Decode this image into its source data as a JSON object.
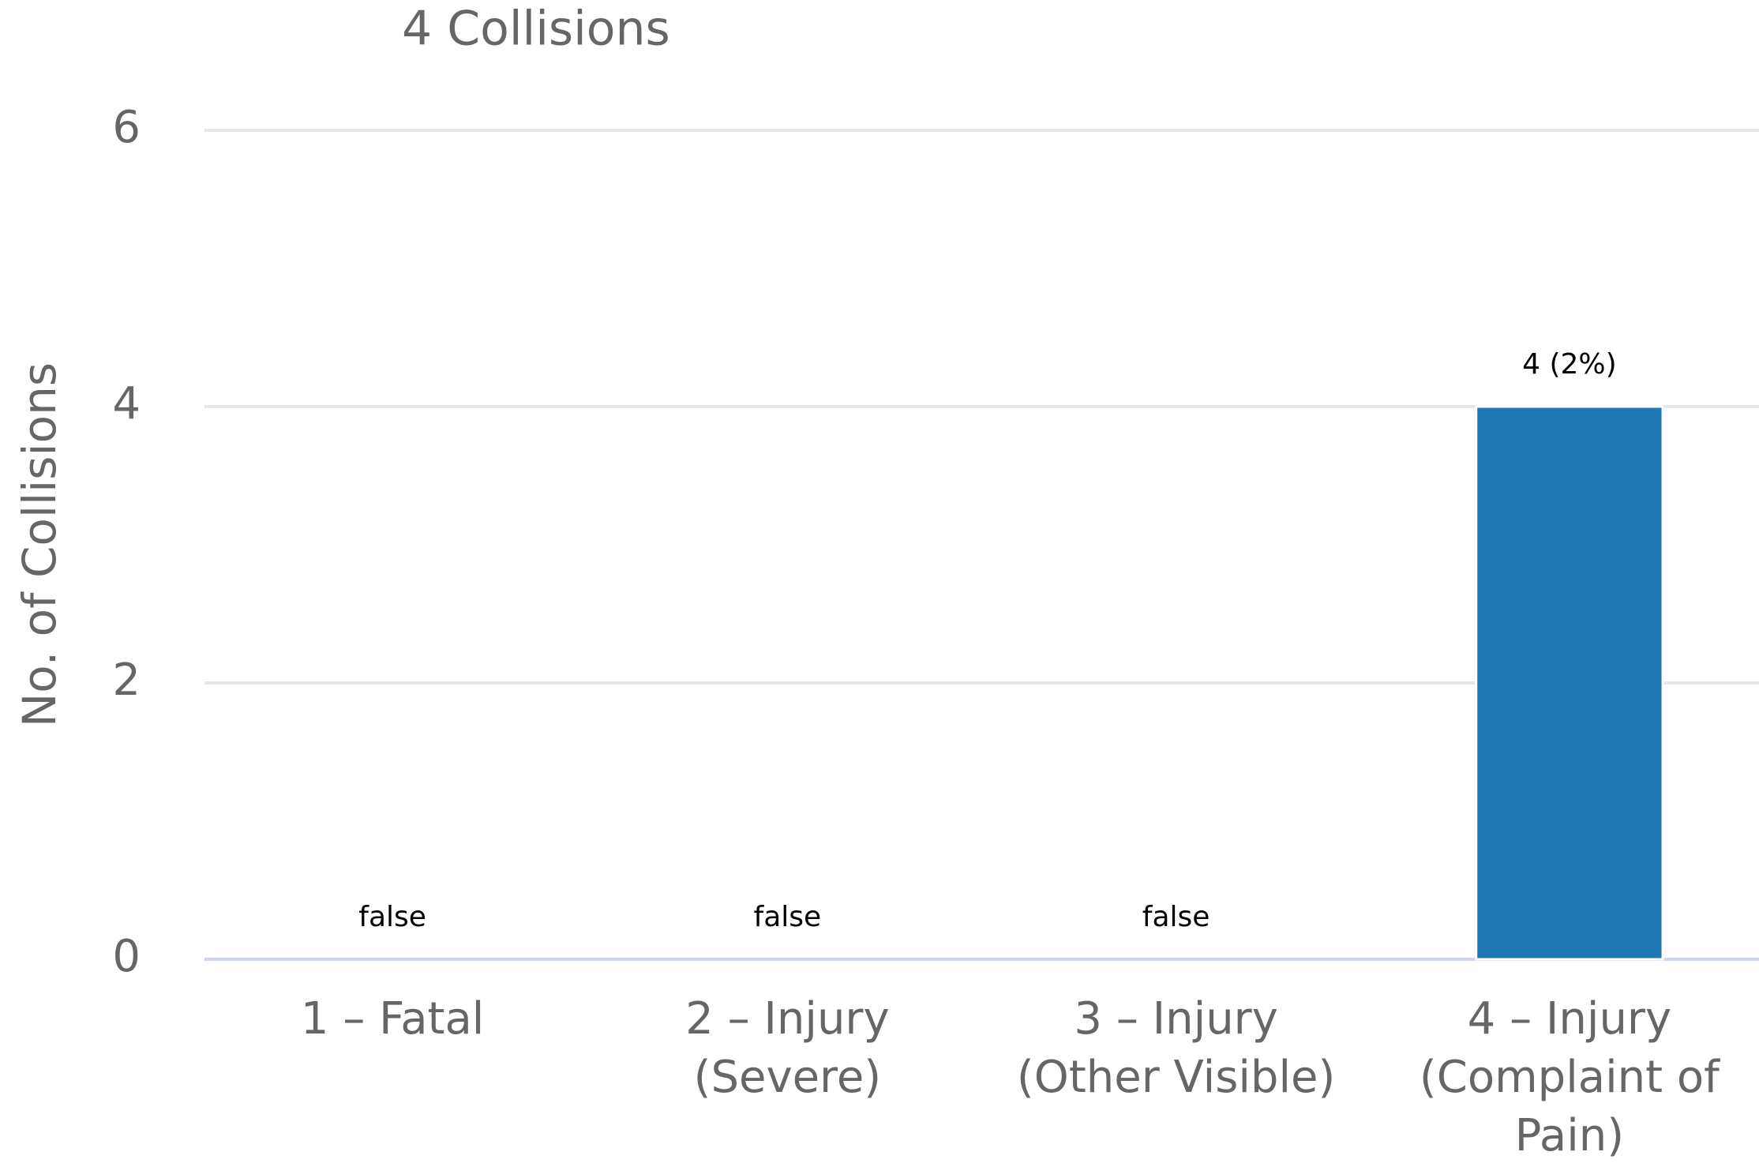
{
  "chart_data": {
    "type": "bar",
    "title": "4 Collisions",
    "y_axis_label": "No. of Collisions",
    "categories": [
      "1 – Fatal",
      "2 – Injury (Severe)",
      "3 – Injury (Other Visible)",
      "4 – Injury (Complaint of Pain)"
    ],
    "values": [
      0,
      0,
      0,
      4
    ],
    "value_labels": [
      "false",
      "false",
      "false",
      "4 (2%)"
    ],
    "color": "#1f77b4",
    "ylim": [
      0,
      6
    ],
    "yticks": [
      0,
      2,
      4,
      6
    ],
    "grid": true
  }
}
